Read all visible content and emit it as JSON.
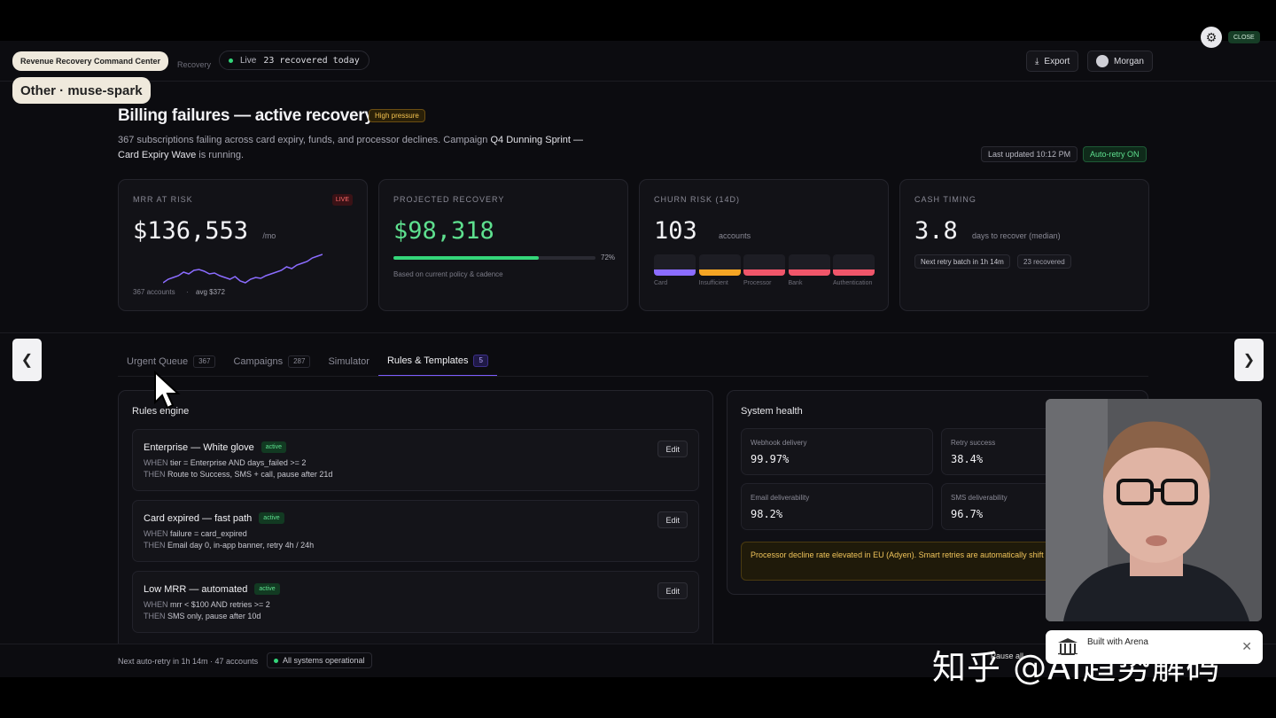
{
  "app": {
    "name": "Revenue Recovery Command Center",
    "crumb": "Recovery",
    "live_label": "Live",
    "recovered_today": "23 recovered today",
    "export_label": "Export",
    "user_name": "Morgan"
  },
  "overlay": {
    "header_tag": "Revenue Recovery Command Center",
    "model_tag": "Other · muse-spark",
    "close_label": "CLOSE"
  },
  "heading": {
    "title": "Billing failures — active recovery",
    "badge": "High pressure",
    "subtitle_pre": "367 subscriptions failing across card expiry, funds, and processor declines. Campaign ",
    "campaign": "Q4 Dunning Sprint — Card Expiry Wave",
    "subtitle_post": " is running.",
    "last_updated": "Last updated 10:12 PM",
    "auto_retry": "Auto-retry ON"
  },
  "kpis": {
    "mrr": {
      "label": "MRR AT RISK",
      "badge": "LIVE",
      "value": "$136,553",
      "unit": "/mo",
      "accounts": "367 accounts",
      "avg": "avg $372",
      "trend": [
        52,
        48,
        46,
        44,
        40,
        42,
        38,
        37,
        39,
        42,
        41,
        44,
        46,
        48,
        45,
        50,
        52,
        48,
        46,
        47,
        44,
        42,
        40,
        38,
        34,
        36,
        32,
        30,
        28,
        24,
        22,
        20
      ]
    },
    "recovery": {
      "label": "PROJECTED RECOVERY",
      "value": "$98,318",
      "percent_label": "72%",
      "percent": 0.72,
      "note": "Based on current policy & cadence"
    },
    "churn": {
      "label": "CHURN RISK (14D)",
      "value": "103",
      "unit": "accounts",
      "segments": [
        {
          "label": "Card",
          "color": "#8b6cff"
        },
        {
          "label": "Insufficient",
          "color": "#f5a524"
        },
        {
          "label": "Processor",
          "color": "#f0566a"
        },
        {
          "label": "Bank",
          "color": "#f0566a"
        },
        {
          "label": "Authentication",
          "color": "#f0566a"
        }
      ]
    },
    "cash": {
      "label": "CASH TIMING",
      "value": "3.8",
      "unit": "days to recover (median)",
      "next_batch": "Next retry batch in 1h 14m",
      "recovered": "23 recovered"
    }
  },
  "tabs": [
    {
      "label": "Urgent Queue",
      "count": "367"
    },
    {
      "label": "Campaigns",
      "count": "287"
    },
    {
      "label": "Simulator",
      "count": ""
    },
    {
      "label": "Rules & Templates",
      "count": "5"
    }
  ],
  "rules": {
    "title": "Rules engine",
    "edit_label": "Edit",
    "items": [
      {
        "name": "Enterprise — White glove",
        "status": "active",
        "when_kw": "WHEN",
        "when": "tier = Enterprise AND days_failed >= 2",
        "then_kw": "THEN",
        "then": "Route to Success, SMS + call, pause after 21d"
      },
      {
        "name": "Card expired — fast path",
        "status": "active",
        "when_kw": "WHEN",
        "when": "failure = card_expired",
        "then_kw": "THEN",
        "then": "Email day 0, in-app banner, retry 4h / 24h"
      },
      {
        "name": "Low MRR — automated",
        "status": "active",
        "when_kw": "WHEN",
        "when": "mrr < $100 AND retries >= 2",
        "then_kw": "THEN",
        "then": "SMS only, pause after 10d"
      }
    ]
  },
  "health": {
    "title": "System health",
    "metrics": [
      {
        "label": "Webhook delivery",
        "value": "99.97%"
      },
      {
        "label": "Retry success",
        "value": "38.4%"
      },
      {
        "label": "Email deliverability",
        "value": "98.2%"
      },
      {
        "label": "SMS deliverability",
        "value": "96.7%"
      }
    ],
    "warning": "Processor decline rate elevated in EU (Adyen). Smart retries are automatically shift windows."
  },
  "footer": {
    "next_retry": "Next auto-retry in 1h 14m · 47 accounts",
    "status": "All systems operational",
    "pause": "Pause all"
  },
  "arena": {
    "built_with": "Built with Arena",
    "close": "✕"
  },
  "watermark": "知乎 @AI趋势解码",
  "nav": {
    "prev": "❮",
    "next": "❯"
  }
}
